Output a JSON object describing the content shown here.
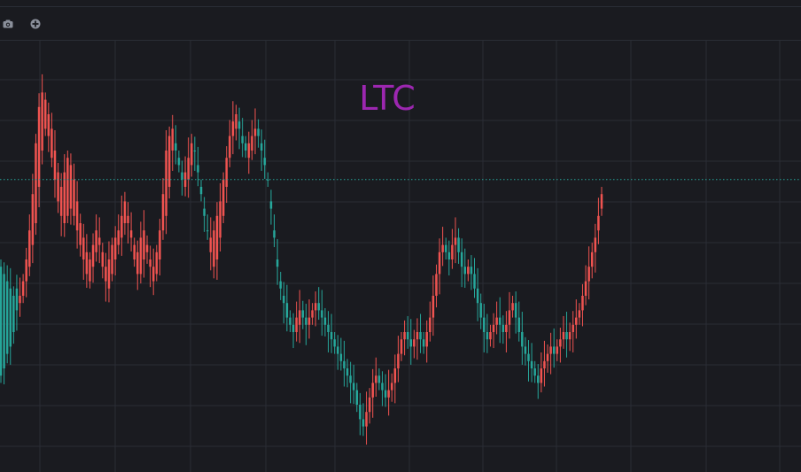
{
  "toolbar": {
    "icons": [
      "camera-icon",
      "plus-circle-icon"
    ]
  },
  "chart_data": {
    "type": "candlestick",
    "title": "LTC",
    "xlabel": "",
    "ylabel": "",
    "ylim": [
      0,
      100
    ],
    "grid": true,
    "last_price_line": 72.0,
    "colors": {
      "up": "#26a69a",
      "down": "#ef5350",
      "grid": "#2a2d35",
      "price_line": "#26a69a",
      "title": "#9c27b0"
    },
    "values": [
      [
        18,
        48
      ],
      [
        20,
        46
      ],
      [
        24,
        44
      ],
      [
        26,
        42
      ],
      [
        30,
        40
      ],
      [
        36,
        42
      ],
      [
        40,
        38
      ],
      [
        44,
        40
      ],
      [
        50,
        44
      ],
      [
        58,
        48
      ],
      [
        68,
        54
      ],
      [
        82,
        60
      ],
      [
        92,
        70
      ],
      [
        96,
        80
      ],
      [
        94,
        86
      ],
      [
        90,
        84
      ],
      [
        86,
        78
      ],
      [
        80,
        72
      ],
      [
        74,
        66
      ],
      [
        70,
        62
      ],
      [
        74,
        60
      ],
      [
        78,
        62
      ],
      [
        76,
        64
      ],
      [
        72,
        62
      ],
      [
        66,
        58
      ],
      [
        60,
        54
      ],
      [
        56,
        50
      ],
      [
        52,
        46
      ],
      [
        50,
        44
      ],
      [
        54,
        48
      ],
      [
        58,
        52
      ],
      [
        56,
        54
      ],
      [
        52,
        48
      ],
      [
        48,
        44
      ],
      [
        50,
        42
      ],
      [
        54,
        46
      ],
      [
        56,
        50
      ],
      [
        58,
        54
      ],
      [
        62,
        56
      ],
      [
        66,
        60
      ],
      [
        62,
        60
      ],
      [
        58,
        56
      ],
      [
        54,
        50
      ],
      [
        52,
        46
      ],
      [
        56,
        46
      ],
      [
        58,
        50
      ],
      [
        54,
        52
      ],
      [
        50,
        48
      ],
      [
        48,
        44
      ],
      [
        52,
        46
      ],
      [
        58,
        50
      ],
      [
        68,
        58
      ],
      [
        80,
        62
      ],
      [
        84,
        70
      ],
      [
        86,
        80
      ],
      [
        80,
        82
      ],
      [
        76,
        78
      ],
      [
        72,
        74
      ],
      [
        74,
        70
      ],
      [
        78,
        72
      ],
      [
        82,
        76
      ],
      [
        80,
        80
      ],
      [
        74,
        76
      ],
      [
        68,
        70
      ],
      [
        62,
        64
      ],
      [
        58,
        58
      ],
      [
        56,
        52
      ],
      [
        58,
        48
      ],
      [
        62,
        50
      ],
      [
        66,
        56
      ],
      [
        72,
        62
      ],
      [
        78,
        70
      ],
      [
        84,
        78
      ],
      [
        88,
        84
      ],
      [
        90,
        86
      ],
      [
        86,
        88
      ],
      [
        82,
        84
      ],
      [
        80,
        82
      ],
      [
        82,
        78
      ],
      [
        84,
        80
      ],
      [
        86,
        84
      ],
      [
        84,
        86
      ],
      [
        80,
        82
      ],
      [
        76,
        78
      ],
      [
        72,
        72
      ],
      [
        64,
        66
      ],
      [
        56,
        58
      ],
      [
        48,
        50
      ],
      [
        42,
        44
      ],
      [
        38,
        40
      ],
      [
        34,
        38
      ],
      [
        32,
        34
      ],
      [
        30,
        32
      ],
      [
        34,
        30
      ],
      [
        36,
        32
      ],
      [
        34,
        36
      ],
      [
        32,
        34
      ],
      [
        34,
        32
      ],
      [
        36,
        34
      ],
      [
        38,
        36
      ],
      [
        36,
        38
      ],
      [
        34,
        36
      ],
      [
        32,
        34
      ],
      [
        30,
        32
      ],
      [
        28,
        30
      ],
      [
        26,
        28
      ],
      [
        24,
        26
      ],
      [
        22,
        24
      ],
      [
        20,
        22
      ],
      [
        18,
        20
      ],
      [
        16,
        18
      ],
      [
        14,
        16
      ],
      [
        10,
        14
      ],
      [
        6,
        10
      ],
      [
        4,
        6
      ],
      [
        8,
        4
      ],
      [
        12,
        8
      ],
      [
        16,
        12
      ],
      [
        18,
        16
      ],
      [
        16,
        18
      ],
      [
        14,
        16
      ],
      [
        12,
        14
      ],
      [
        14,
        12
      ],
      [
        16,
        14
      ],
      [
        20,
        16
      ],
      [
        24,
        20
      ],
      [
        28,
        24
      ],
      [
        30,
        28
      ],
      [
        28,
        30
      ],
      [
        26,
        28
      ],
      [
        28,
        26
      ],
      [
        30,
        28
      ],
      [
        28,
        30
      ],
      [
        26,
        28
      ],
      [
        30,
        26
      ],
      [
        34,
        30
      ],
      [
        40,
        34
      ],
      [
        46,
        40
      ],
      [
        52,
        46
      ],
      [
        54,
        52
      ],
      [
        52,
        54
      ],
      [
        50,
        52
      ],
      [
        54,
        50
      ],
      [
        56,
        54
      ],
      [
        52,
        56
      ],
      [
        48,
        52
      ],
      [
        46,
        48
      ],
      [
        48,
        46
      ],
      [
        46,
        48
      ],
      [
        42,
        46
      ],
      [
        38,
        42
      ],
      [
        34,
        38
      ],
      [
        30,
        34
      ],
      [
        28,
        30
      ],
      [
        30,
        28
      ],
      [
        32,
        30
      ],
      [
        34,
        32
      ],
      [
        32,
        34
      ],
      [
        30,
        32
      ],
      [
        32,
        30
      ],
      [
        36,
        32
      ],
      [
        38,
        36
      ],
      [
        34,
        38
      ],
      [
        30,
        34
      ],
      [
        26,
        30
      ],
      [
        24,
        26
      ],
      [
        22,
        24
      ],
      [
        20,
        22
      ],
      [
        18,
        20
      ],
      [
        16,
        18
      ],
      [
        20,
        16
      ],
      [
        22,
        20
      ],
      [
        24,
        22
      ],
      [
        26,
        24
      ],
      [
        24,
        26
      ],
      [
        26,
        24
      ],
      [
        28,
        26
      ],
      [
        30,
        28
      ],
      [
        28,
        30
      ],
      [
        30,
        28
      ],
      [
        32,
        30
      ],
      [
        34,
        32
      ],
      [
        36,
        34
      ],
      [
        40,
        36
      ],
      [
        44,
        40
      ],
      [
        48,
        44
      ],
      [
        52,
        48
      ],
      [
        56,
        52
      ],
      [
        62,
        58
      ],
      [
        68,
        64
      ]
    ]
  }
}
